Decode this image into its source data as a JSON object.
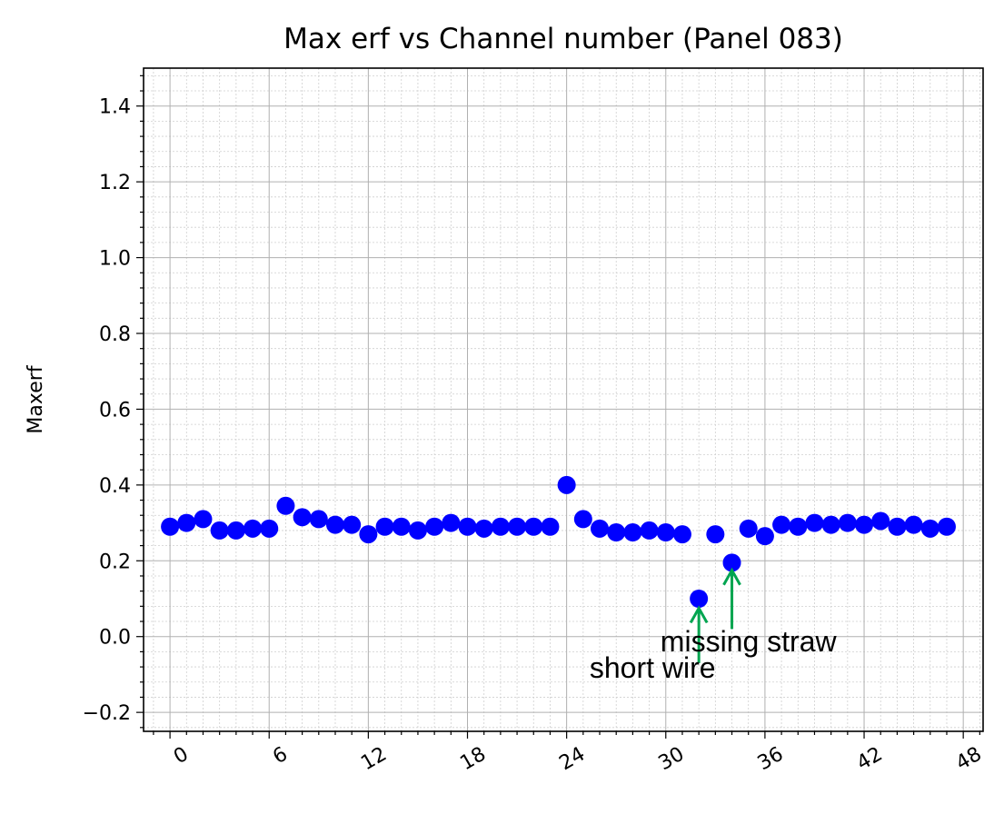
{
  "chart_data": {
    "type": "scatter",
    "title": "Max erf vs Channel number (Panel 083)",
    "xlabel": "",
    "ylabel": "Maxerf",
    "xlim": [
      -1.6,
      49.2
    ],
    "ylim": [
      -0.25,
      1.5
    ],
    "xticks": [
      0,
      6,
      12,
      18,
      24,
      30,
      36,
      42,
      48
    ],
    "xtick_labels": [
      "0",
      "6",
      "12",
      "18",
      "24",
      "30",
      "36",
      "42",
      "48"
    ],
    "yticks": [
      -0.2,
      0.0,
      0.2,
      0.4,
      0.6,
      0.8,
      1.0,
      1.2,
      1.4
    ],
    "ytick_labels": [
      "−0.2",
      "0.0",
      "0.2",
      "0.4",
      "0.6",
      "0.8",
      "1.0",
      "1.2",
      "1.4"
    ],
    "grid": true,
    "minor_grid": true,
    "marker_color": "#0000ff",
    "annotation_color": "#00a550",
    "points": [
      {
        "x": 0,
        "y": 0.29
      },
      {
        "x": 1,
        "y": 0.3
      },
      {
        "x": 2,
        "y": 0.31
      },
      {
        "x": 3,
        "y": 0.28
      },
      {
        "x": 4,
        "y": 0.28
      },
      {
        "x": 5,
        "y": 0.285
      },
      {
        "x": 6,
        "y": 0.285
      },
      {
        "x": 7,
        "y": 0.345
      },
      {
        "x": 8,
        "y": 0.315
      },
      {
        "x": 9,
        "y": 0.31
      },
      {
        "x": 10,
        "y": 0.295
      },
      {
        "x": 11,
        "y": 0.295
      },
      {
        "x": 12,
        "y": 0.27
      },
      {
        "x": 13,
        "y": 0.29
      },
      {
        "x": 14,
        "y": 0.29
      },
      {
        "x": 15,
        "y": 0.28
      },
      {
        "x": 16,
        "y": 0.29
      },
      {
        "x": 17,
        "y": 0.3
      },
      {
        "x": 18,
        "y": 0.29
      },
      {
        "x": 19,
        "y": 0.285
      },
      {
        "x": 20,
        "y": 0.29
      },
      {
        "x": 21,
        "y": 0.29
      },
      {
        "x": 22,
        "y": 0.29
      },
      {
        "x": 23,
        "y": 0.29
      },
      {
        "x": 24,
        "y": 0.4
      },
      {
        "x": 25,
        "y": 0.31
      },
      {
        "x": 26,
        "y": 0.285
      },
      {
        "x": 27,
        "y": 0.275
      },
      {
        "x": 28,
        "y": 0.275
      },
      {
        "x": 29,
        "y": 0.28
      },
      {
        "x": 30,
        "y": 0.275
      },
      {
        "x": 31,
        "y": 0.27
      },
      {
        "x": 32,
        "y": 0.1
      },
      {
        "x": 33,
        "y": 0.27
      },
      {
        "x": 34,
        "y": 0.195
      },
      {
        "x": 35,
        "y": 0.285
      },
      {
        "x": 36,
        "y": 0.265
      },
      {
        "x": 37,
        "y": 0.295
      },
      {
        "x": 38,
        "y": 0.29
      },
      {
        "x": 39,
        "y": 0.3
      },
      {
        "x": 40,
        "y": 0.295
      },
      {
        "x": 41,
        "y": 0.3
      },
      {
        "x": 42,
        "y": 0.295
      },
      {
        "x": 43,
        "y": 0.305
      },
      {
        "x": 44,
        "y": 0.29
      },
      {
        "x": 45,
        "y": 0.295
      },
      {
        "x": 46,
        "y": 0.285
      },
      {
        "x": 47,
        "y": 0.29
      }
    ],
    "annotations": [
      {
        "text": "short wire",
        "arrow_x": 32,
        "arrow_tail_y": -0.07,
        "arrow_head_y": 0.075,
        "text_x": 29.2,
        "text_y": -0.08
      },
      {
        "text": "missing straw",
        "arrow_x": 34,
        "arrow_tail_y": 0.02,
        "arrow_head_y": 0.175,
        "text_x": 35.0,
        "text_y": -0.01
      }
    ]
  }
}
